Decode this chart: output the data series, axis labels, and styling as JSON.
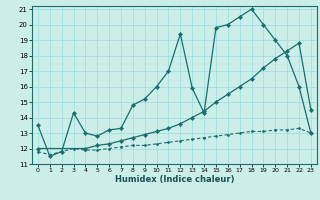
{
  "xlabel": "Humidex (Indice chaleur)",
  "bg_color": "#cceee8",
  "grid_color": "#99dddd",
  "line_color": "#1a6e6e",
  "xlim": [
    -0.5,
    23.5
  ],
  "ylim": [
    11,
    21.2
  ],
  "xticks": [
    0,
    1,
    2,
    3,
    4,
    5,
    6,
    7,
    8,
    9,
    10,
    11,
    12,
    13,
    14,
    15,
    16,
    17,
    18,
    19,
    20,
    21,
    22,
    23
  ],
  "yticks": [
    11,
    12,
    13,
    14,
    15,
    16,
    17,
    18,
    19,
    20,
    21
  ],
  "line1_x": [
    0,
    1,
    2,
    3,
    4,
    5,
    6,
    7,
    8,
    9,
    10,
    11,
    12,
    13,
    14,
    15,
    16,
    17,
    18,
    19,
    20,
    21,
    22,
    23
  ],
  "line1_y": [
    13.5,
    11.5,
    11.8,
    14.3,
    13.0,
    12.8,
    13.2,
    13.3,
    14.8,
    15.2,
    16.0,
    17.0,
    19.4,
    15.9,
    14.3,
    19.8,
    20.0,
    20.5,
    21.0,
    20.0,
    19.0,
    18.0,
    16.0,
    13.0
  ],
  "line2_x": [
    0,
    4,
    5,
    6,
    7,
    8,
    9,
    10,
    11,
    12,
    13,
    14,
    15,
    16,
    17,
    18,
    19,
    20,
    21,
    22,
    23
  ],
  "line2_y": [
    12.0,
    12.0,
    12.2,
    12.3,
    12.5,
    12.7,
    12.9,
    13.1,
    13.3,
    13.6,
    14.0,
    14.4,
    15.0,
    15.5,
    16.0,
    16.5,
    17.2,
    17.8,
    18.3,
    18.8,
    14.5
  ],
  "line3_x": [
    0,
    1,
    2,
    3,
    4,
    5,
    6,
    7,
    8,
    9,
    10,
    11,
    12,
    13,
    14,
    15,
    16,
    17,
    18,
    19,
    20,
    21,
    22,
    23
  ],
  "line3_y": [
    11.8,
    11.6,
    11.8,
    12.0,
    11.9,
    11.9,
    12.0,
    12.1,
    12.2,
    12.2,
    12.3,
    12.4,
    12.5,
    12.6,
    12.7,
    12.8,
    12.9,
    13.0,
    13.1,
    13.1,
    13.2,
    13.2,
    13.3,
    13.0
  ]
}
